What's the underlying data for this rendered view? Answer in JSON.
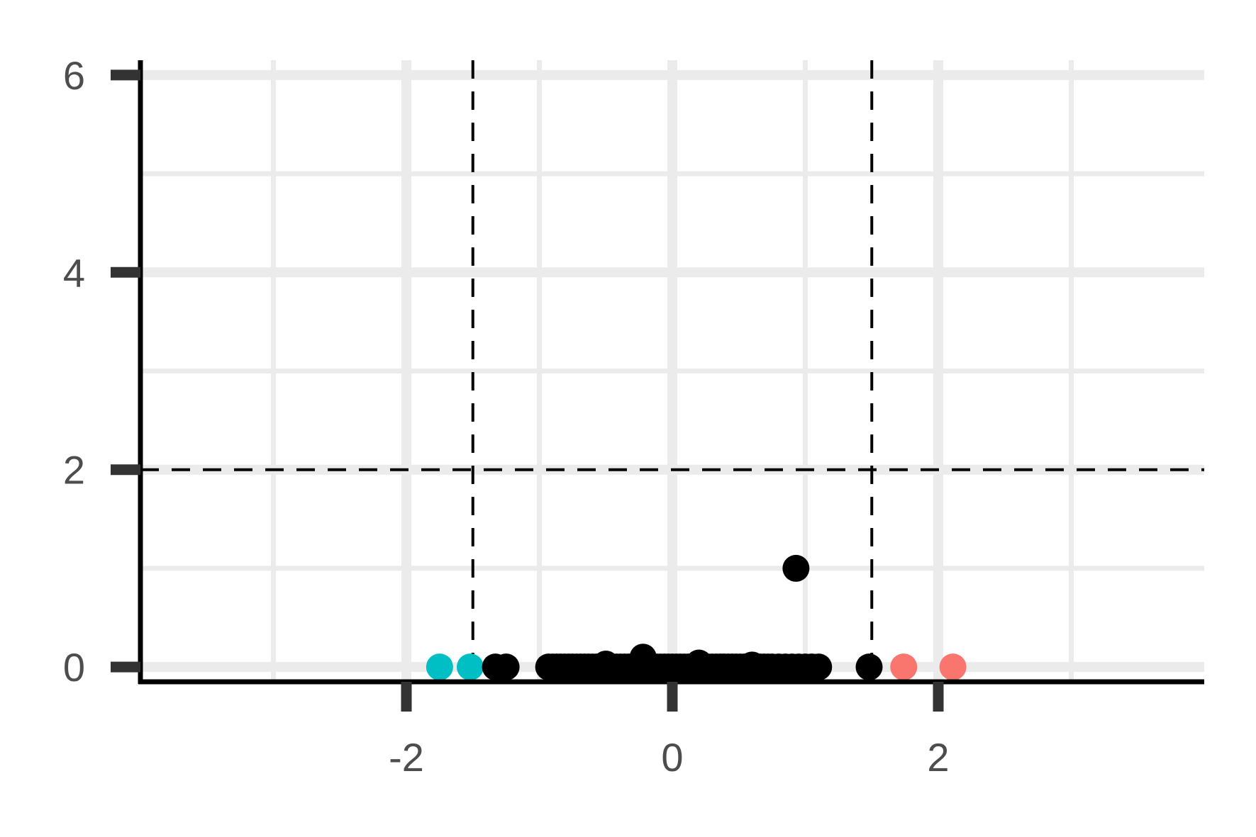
{
  "chart_data": {
    "type": "scatter",
    "title": "",
    "xlabel": "",
    "ylabel": "",
    "xlim": [
      -4,
      4
    ],
    "ylim": [
      -0.15,
      6.15
    ],
    "x_ticks": [
      -2,
      0,
      2
    ],
    "y_ticks": [
      0,
      2,
      4,
      6
    ],
    "x_tick_labels": [
      "-2",
      "0",
      "2"
    ],
    "y_tick_labels": [
      "0",
      "2",
      "4",
      "6"
    ],
    "x_minor_gridlines": [
      -3,
      -1,
      1,
      3
    ],
    "y_minor_gridlines": [
      1,
      3,
      5
    ],
    "grid": true,
    "legend": "none",
    "reference_lines": {
      "vertical": [
        -1.5,
        1.5
      ],
      "horizontal": [
        2
      ],
      "style": "dashed",
      "color": "#000000"
    },
    "colors": {
      "down": "#00BFC4",
      "up": "#F8766D",
      "not_significant": "#000000",
      "grid": "#ebebeb",
      "axis": "#000000",
      "tick": "#333333"
    },
    "series": [
      {
        "group": "down",
        "color": "#00BFC4",
        "points": [
          [
            -1.75,
            0
          ],
          [
            -1.52,
            0
          ]
        ]
      },
      {
        "group": "up",
        "color": "#F8766D",
        "points": [
          [
            1.74,
            0
          ],
          [
            2.11,
            0
          ]
        ]
      },
      {
        "group": "not_significant",
        "color": "#000000",
        "points": [
          [
            -1.33,
            0
          ],
          [
            -1.25,
            0
          ],
          [
            -0.93,
            0
          ],
          [
            -0.9,
            0
          ],
          [
            -0.87,
            0
          ],
          [
            -0.84,
            0
          ],
          [
            -0.81,
            0
          ],
          [
            -0.78,
            0
          ],
          [
            -0.75,
            0
          ],
          [
            -0.72,
            0
          ],
          [
            -0.69,
            0
          ],
          [
            -0.66,
            0
          ],
          [
            -0.63,
            0
          ],
          [
            -0.6,
            0
          ],
          [
            -0.57,
            0
          ],
          [
            -0.54,
            0
          ],
          [
            -0.51,
            0
          ],
          [
            -0.48,
            0
          ],
          [
            -0.45,
            0
          ],
          [
            -0.42,
            0
          ],
          [
            -0.39,
            0
          ],
          [
            -0.36,
            0
          ],
          [
            -0.33,
            0
          ],
          [
            -0.3,
            0
          ],
          [
            -0.27,
            0
          ],
          [
            -0.24,
            0
          ],
          [
            -0.21,
            0
          ],
          [
            -0.18,
            0
          ],
          [
            -0.15,
            0
          ],
          [
            -0.12,
            0
          ],
          [
            -0.09,
            0
          ],
          [
            -0.06,
            0
          ],
          [
            -0.03,
            0
          ],
          [
            0.0,
            0
          ],
          [
            0.03,
            0
          ],
          [
            0.06,
            0
          ],
          [
            0.09,
            0
          ],
          [
            0.12,
            0
          ],
          [
            0.15,
            0
          ],
          [
            0.18,
            0
          ],
          [
            0.21,
            0
          ],
          [
            0.24,
            0
          ],
          [
            0.27,
            0
          ],
          [
            0.3,
            0
          ],
          [
            0.33,
            0
          ],
          [
            0.36,
            0
          ],
          [
            0.39,
            0
          ],
          [
            0.42,
            0
          ],
          [
            0.45,
            0
          ],
          [
            0.48,
            0
          ],
          [
            0.51,
            0
          ],
          [
            0.54,
            0
          ],
          [
            0.57,
            0
          ],
          [
            0.6,
            0
          ],
          [
            0.63,
            0
          ],
          [
            0.66,
            0
          ],
          [
            0.69,
            0
          ],
          [
            0.72,
            0
          ],
          [
            0.75,
            0
          ],
          [
            0.8,
            0
          ],
          [
            0.85,
            0
          ],
          [
            0.9,
            0
          ],
          [
            0.95,
            0
          ],
          [
            1.0,
            0
          ],
          [
            1.05,
            0
          ],
          [
            1.1,
            0
          ],
          [
            -0.22,
            0.1
          ],
          [
            -0.5,
            0.03
          ],
          [
            0.2,
            0.04
          ],
          [
            0.6,
            0.02
          ],
          [
            0.93,
            1.0
          ],
          [
            1.48,
            0
          ]
        ]
      }
    ]
  }
}
